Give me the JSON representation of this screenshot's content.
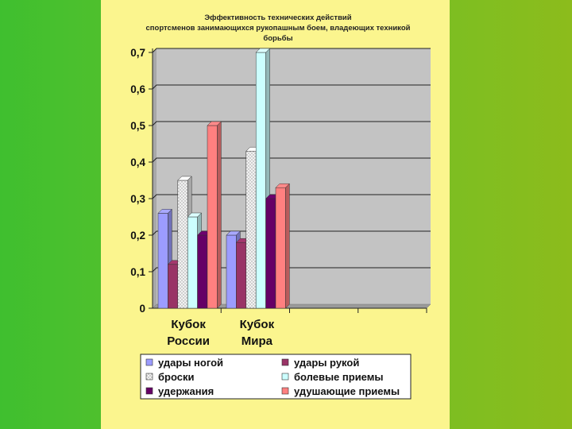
{
  "chart_data": {
    "type": "bar",
    "title_lines": [
      "Эффективность технических действий",
      "спортсменов занимающихся рукопашным боем, владеющих техникой",
      "борьбы"
    ],
    "categories": [
      [
        "Кубок",
        "России"
      ],
      [
        "Кубок",
        "Мира"
      ]
    ],
    "y_ticks": [
      "0",
      "0,1",
      "0,2",
      "0,3",
      "0,4",
      "0,5",
      "0,6",
      "0,7"
    ],
    "ylim": [
      0,
      0.7
    ],
    "grid": true,
    "legend_position": "bottom",
    "series": [
      {
        "name": "удары ногой",
        "color": "#9c9cff",
        "values": [
          0.26,
          0.2
        ]
      },
      {
        "name": "удары рукой",
        "color": "#993366",
        "values": [
          0.12,
          0.18
        ]
      },
      {
        "name": "броски",
        "color": "#ebebeb",
        "pattern": true,
        "values": [
          0.35,
          0.43
        ]
      },
      {
        "name": "болевые приемы",
        "color": "#ccffff",
        "values": [
          0.25,
          0.7
        ]
      },
      {
        "name": "удержания",
        "color": "#660066",
        "values": [
          0.2,
          0.3
        ]
      },
      {
        "name": "удушающие приемы",
        "color": "#ff8080",
        "values": [
          0.5,
          0.33
        ]
      }
    ]
  }
}
